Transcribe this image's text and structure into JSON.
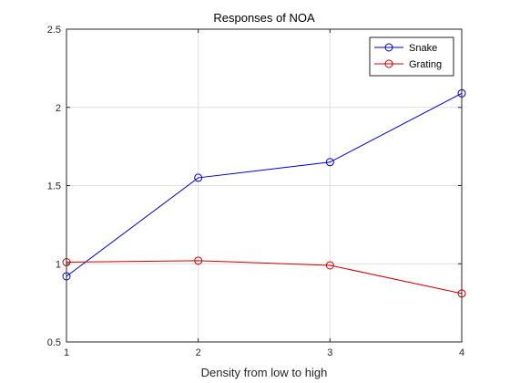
{
  "chart_data": {
    "type": "line",
    "title": "Responses of NOA",
    "xlabel": "Density from low to high",
    "ylabel": "",
    "x": [
      1,
      2,
      3,
      4
    ],
    "xlim": [
      1,
      4
    ],
    "ylim": [
      0.5,
      2.5
    ],
    "xticks": [
      "1",
      "2",
      "3",
      "4"
    ],
    "yticks": [
      "0.5",
      "1",
      "1.5",
      "2",
      "2.5"
    ],
    "grid": true,
    "legend_position": "top-right",
    "series": [
      {
        "name": "Snake",
        "values": [
          0.92,
          1.55,
          1.65,
          2.09
        ],
        "color": "#0000cc",
        "marker": "circle"
      },
      {
        "name": "Grating",
        "values": [
          1.01,
          1.02,
          0.99,
          0.81
        ],
        "color": "#cc0000",
        "marker": "circle"
      }
    ]
  }
}
